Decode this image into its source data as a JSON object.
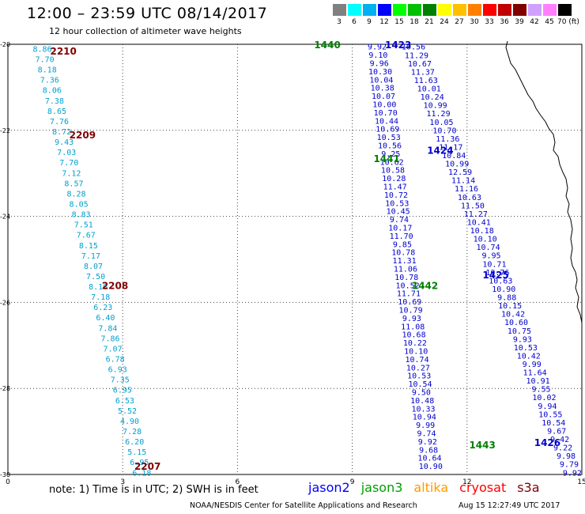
{
  "header": {
    "title": "12:00 – 23:59 UTC 08/14/2017",
    "subtitle": "12 hour collection of altimeter wave heights"
  },
  "scale": {
    "labels": [
      "3",
      "6",
      "9",
      "12",
      "15",
      "18",
      "21",
      "24",
      "27",
      "30",
      "33",
      "36",
      "39",
      "42",
      "45",
      "70 (ft)"
    ],
    "colors": [
      "#808080",
      "#00ffff",
      "#00b0f0",
      "#0000ff",
      "#00ff00",
      "#00c000",
      "#008000",
      "#ffff00",
      "#ffc000",
      "#ff8000",
      "#ff0000",
      "#c00000",
      "#800000",
      "#d0a0ff",
      "#ff80ff",
      "#000000"
    ]
  },
  "axes": {
    "x_ticks": [
      "0",
      "3",
      "6",
      "9",
      "12",
      "15"
    ],
    "y_ticks": [
      "-20",
      "-22",
      "-24",
      "-26",
      "-28",
      "-30"
    ],
    "x_range": [
      0,
      15
    ],
    "y_range": [
      -20,
      -30
    ]
  },
  "tracks": [
    {
      "satellite": "jason2",
      "color": "#0000cc",
      "start": [
        9.65,
        -20.05
      ],
      "end": [
        11.05,
        -29.8
      ],
      "values": [
        "9.92",
        "9.10",
        "9.96",
        "10.30",
        "10.04",
        "10.38",
        "10.07",
        "10.00",
        "10.70",
        "10.44",
        "10.69",
        "10.53",
        "10.56",
        "9.25",
        "10.62",
        "10.58",
        "10.28",
        "11.47",
        "10.72",
        "10.53",
        "10.45",
        "9.74",
        "10.17",
        "11.70",
        "9.85",
        "10.78",
        "11.31",
        "11.06",
        "10.78",
        "10.52",
        "11.71",
        "10.69",
        "10.79",
        "9.93",
        "11.08",
        "10.68",
        "10.22",
        "10.10",
        "10.74",
        "10.27",
        "10.53",
        "10.54",
        "9.50",
        "10.48",
        "10.33",
        "10.94",
        "9.99",
        "9.74",
        "9.92",
        "9.68",
        "10.64",
        "10.90"
      ],
      "labels": [
        {
          "text": "1440",
          "x": 8.35,
          "y": -20.0,
          "color": "#008000"
        },
        {
          "text": "1441",
          "x": 9.9,
          "y": -22.65,
          "color": "#008000"
        },
        {
          "text": "1442",
          "x": 10.9,
          "y": -25.6,
          "color": "#008000"
        },
        {
          "text": "1443",
          "x": 12.4,
          "y": -29.3,
          "color": "#008000"
        }
      ]
    },
    {
      "satellite": "jason2",
      "color": "#0000cc",
      "start": [
        10.6,
        -20.05
      ],
      "end": [
        14.75,
        -29.95
      ],
      "values": [
        "10.56",
        "11.29",
        "10.67",
        "11.37",
        "11.63",
        "10.01",
        "10.24",
        "10.99",
        "11.29",
        "10.05",
        "10.70",
        "11.36",
        "11.17",
        "10.84",
        "10.99",
        "12.59",
        "11.14",
        "11.16",
        "10.63",
        "11.50",
        "11.27",
        "10.41",
        "10.18",
        "10.10",
        "10.74",
        "9.95",
        "10.71",
        "10.76",
        "10.63",
        "10.90",
        "9.88",
        "10.15",
        "10.42",
        "10.60",
        "10.75",
        "9.93",
        "10.53",
        "10.42",
        "9.99",
        "11.64",
        "10.91",
        "9.55",
        "10.02",
        "9.94",
        "10.55",
        "10.54",
        "9.67",
        "9.42",
        "9.22",
        "9.98",
        "9.79",
        "9.92"
      ],
      "labels": [
        {
          "text": "1423",
          "x": 10.2,
          "y": -20.0,
          "color": "#0000cc"
        },
        {
          "text": "1424",
          "x": 11.3,
          "y": -22.45,
          "color": "#0000cc"
        },
        {
          "text": "1425",
          "x": 12.75,
          "y": -25.35,
          "color": "#0000cc"
        },
        {
          "text": "1426",
          "x": 14.1,
          "y": -29.25,
          "color": "#0000cc"
        }
      ]
    },
    {
      "satellite": "cryosat",
      "color": "#00a0d0",
      "start": [
        0.9,
        -20.1
      ],
      "end": [
        3.5,
        -29.95
      ],
      "values": [
        "8.86",
        "7.70",
        "8.18",
        "7.36",
        "8.06",
        "7.38",
        "8.65",
        "7.76",
        "8.72",
        "9.43",
        "7.03",
        "7.70",
        "7.12",
        "8.57",
        "8.28",
        "8.05",
        "8.83",
        "7.51",
        "7.67",
        "8.15",
        "7.17",
        "8.07",
        "7.50",
        "8.10",
        "7.18",
        "6.23",
        "6.40",
        "7.84",
        "7.86",
        "7.07",
        "6.78",
        "6.93",
        "7.35",
        "6.95",
        "6.53",
        "5.52",
        "4.90",
        "7.28",
        "6.20",
        "5.15",
        "6.95",
        "6.18"
      ],
      "labels": [
        {
          "text": "2210",
          "x": 1.45,
          "y": -20.15,
          "color": "#800000"
        },
        {
          "text": "2209",
          "x": 1.95,
          "y": -22.1,
          "color": "#800000"
        },
        {
          "text": "2208",
          "x": 2.8,
          "y": -25.6,
          "color": "#800000"
        },
        {
          "text": "2207",
          "x": 3.65,
          "y": -29.8,
          "color": "#800000"
        }
      ]
    }
  ],
  "footer": {
    "note": "note: 1) Time is in UTC; 2) SWH is in feet",
    "satellites": [
      {
        "name": "jason2",
        "color": "#0000ff"
      },
      {
        "name": "jason3",
        "color": "#00a000"
      },
      {
        "name": "altika",
        "color": "#ff9900"
      },
      {
        "name": "cryosat",
        "color": "#ff0000"
      },
      {
        "name": "s3a",
        "color": "#800000"
      }
    ],
    "credit": "NOAA/NESDIS Center for Satellite Applications and Research",
    "timestamp": "Aug 15 12:27:49 UTC 2017"
  }
}
